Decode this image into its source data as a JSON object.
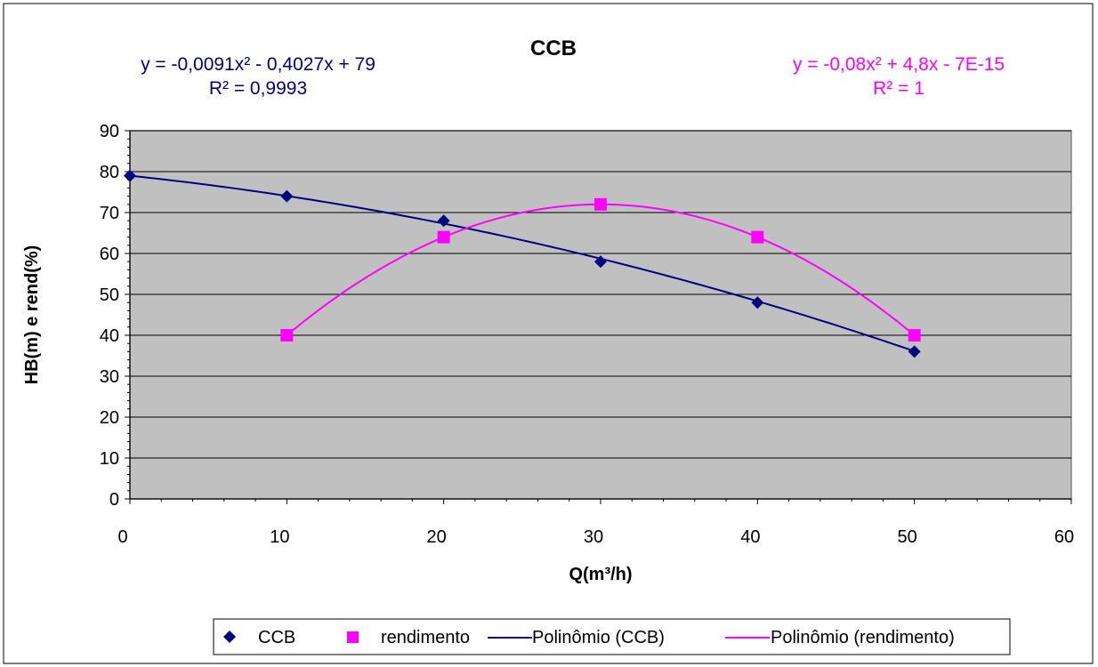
{
  "chart_data": {
    "type": "scatter",
    "title": "CCB",
    "xlabel": "Q(m³/h)",
    "ylabel": "HB(m) e rend(%)",
    "xlim": [
      0,
      60
    ],
    "ylim": [
      0,
      90
    ],
    "x_ticks": [
      0,
      10,
      20,
      30,
      40,
      50,
      60
    ],
    "y_ticks": [
      0,
      10,
      20,
      30,
      40,
      50,
      60,
      70,
      80,
      90
    ],
    "grid": "horizontal",
    "plot_background": "#c0c0c0",
    "legend_position": "bottom",
    "series": [
      {
        "name": "CCB",
        "kind": "points",
        "marker": "diamond",
        "color": "#000080",
        "x": [
          0,
          10,
          20,
          30,
          40,
          50
        ],
        "y": [
          79,
          74,
          68,
          58,
          48,
          36
        ]
      },
      {
        "name": "rendimento",
        "kind": "points",
        "marker": "square",
        "color": "#ff00ff",
        "x": [
          10,
          20,
          30,
          40,
          50
        ],
        "y": [
          40,
          64,
          72,
          64,
          40
        ]
      }
    ],
    "trendlines": [
      {
        "name": "Polinômio (CCB)",
        "type": "polynomial",
        "coefficients": [
          -0.0091,
          -0.4027,
          79
        ],
        "x_range": [
          0,
          50
        ],
        "color": "#000080",
        "equation_text": "y = -0,0091x² - 0,4027x + 79",
        "r2_text": "R² = 0,9993"
      },
      {
        "name": "Polinômio (rendimento)",
        "type": "polynomial",
        "coefficients": [
          -0.08,
          4.8,
          0
        ],
        "x_range": [
          10,
          50
        ],
        "color": "#ff00ff",
        "equation_text": "y = -0,08x² + 4,8x - 7E-15",
        "r2_text": "R² = 1"
      }
    ]
  }
}
